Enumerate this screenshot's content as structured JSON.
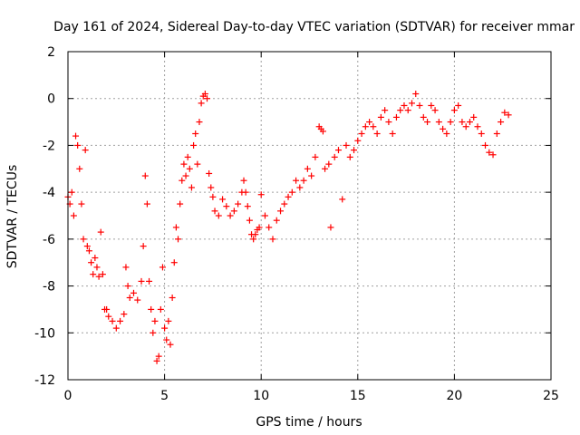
{
  "chart_data": {
    "type": "scatter",
    "title": "Day 161 of 2024, Sidereal Day-to-day VTEC variation (SDTVAR) for receiver mmar",
    "xlabel": "GPS time / hours",
    "ylabel": "SDTVAR / TECUs",
    "xlim": [
      0,
      25
    ],
    "ylim": [
      -12,
      2
    ],
    "xticks": [
      0,
      5,
      10,
      15,
      20,
      25
    ],
    "yticks": [
      -12,
      -10,
      -8,
      -6,
      -4,
      -2,
      0,
      2
    ],
    "grid": true,
    "marker": "+",
    "color": "#ff0000",
    "series": [
      {
        "name": "SDTVAR",
        "points": [
          [
            0.0,
            -4.2
          ],
          [
            0.1,
            -4.5
          ],
          [
            0.2,
            -4.0
          ],
          [
            0.3,
            -5.0
          ],
          [
            0.4,
            -1.6
          ],
          [
            0.5,
            -2.0
          ],
          [
            0.6,
            -3.0
          ],
          [
            0.7,
            -4.5
          ],
          [
            0.8,
            -6.0
          ],
          [
            0.9,
            -2.2
          ],
          [
            1.0,
            -6.3
          ],
          [
            1.1,
            -6.5
          ],
          [
            1.2,
            -7.0
          ],
          [
            1.3,
            -7.5
          ],
          [
            1.4,
            -6.8
          ],
          [
            1.5,
            -7.2
          ],
          [
            1.6,
            -7.6
          ],
          [
            1.7,
            -5.7
          ],
          [
            1.8,
            -7.5
          ],
          [
            1.9,
            -9.0
          ],
          [
            2.0,
            -9.0
          ],
          [
            2.1,
            -9.3
          ],
          [
            2.3,
            -9.5
          ],
          [
            2.5,
            -9.8
          ],
          [
            2.7,
            -9.5
          ],
          [
            2.9,
            -9.2
          ],
          [
            3.0,
            -7.2
          ],
          [
            3.1,
            -8.0
          ],
          [
            3.2,
            -8.5
          ],
          [
            3.4,
            -8.3
          ],
          [
            3.6,
            -8.6
          ],
          [
            3.8,
            -7.8
          ],
          [
            3.9,
            -6.3
          ],
          [
            4.0,
            -3.3
          ],
          [
            4.1,
            -4.5
          ],
          [
            4.2,
            -7.8
          ],
          [
            4.3,
            -9.0
          ],
          [
            4.4,
            -10.0
          ],
          [
            4.5,
            -9.5
          ],
          [
            4.6,
            -11.2
          ],
          [
            4.7,
            -11.0
          ],
          [
            4.8,
            -9.0
          ],
          [
            4.9,
            -7.2
          ],
          [
            5.0,
            -9.8
          ],
          [
            5.1,
            -10.3
          ],
          [
            5.2,
            -9.5
          ],
          [
            5.3,
            -10.5
          ],
          [
            5.4,
            -8.5
          ],
          [
            5.5,
            -7.0
          ],
          [
            5.6,
            -5.5
          ],
          [
            5.7,
            -6.0
          ],
          [
            5.8,
            -4.5
          ],
          [
            5.9,
            -3.5
          ],
          [
            6.0,
            -2.8
          ],
          [
            6.1,
            -3.3
          ],
          [
            6.2,
            -2.5
          ],
          [
            6.3,
            -3.0
          ],
          [
            6.4,
            -3.8
          ],
          [
            6.5,
            -2.0
          ],
          [
            6.6,
            -1.5
          ],
          [
            6.7,
            -2.8
          ],
          [
            6.8,
            -1.0
          ],
          [
            6.9,
            -0.2
          ],
          [
            7.0,
            0.1
          ],
          [
            7.1,
            0.2
          ],
          [
            7.2,
            0.0
          ],
          [
            7.3,
            -3.2
          ],
          [
            7.4,
            -3.8
          ],
          [
            7.5,
            -4.2
          ],
          [
            7.6,
            -4.8
          ],
          [
            7.8,
            -5.0
          ],
          [
            8.0,
            -4.3
          ],
          [
            8.2,
            -4.6
          ],
          [
            8.4,
            -5.0
          ],
          [
            8.6,
            -4.8
          ],
          [
            8.8,
            -4.5
          ],
          [
            9.0,
            -4.0
          ],
          [
            9.1,
            -3.5
          ],
          [
            9.2,
            -4.0
          ],
          [
            9.3,
            -4.6
          ],
          [
            9.4,
            -5.2
          ],
          [
            9.5,
            -5.8
          ],
          [
            9.6,
            -6.0
          ],
          [
            9.7,
            -5.8
          ],
          [
            9.8,
            -5.6
          ],
          [
            9.9,
            -5.5
          ],
          [
            10.0,
            -4.1
          ],
          [
            10.2,
            -5.0
          ],
          [
            10.4,
            -5.5
          ],
          [
            10.6,
            -6.0
          ],
          [
            10.8,
            -5.2
          ],
          [
            11.0,
            -4.8
          ],
          [
            11.2,
            -4.5
          ],
          [
            11.4,
            -4.2
          ],
          [
            11.6,
            -4.0
          ],
          [
            11.8,
            -3.5
          ],
          [
            12.0,
            -3.8
          ],
          [
            12.2,
            -3.5
          ],
          [
            12.4,
            -3.0
          ],
          [
            12.6,
            -3.3
          ],
          [
            12.8,
            -2.5
          ],
          [
            13.0,
            -1.2
          ],
          [
            13.1,
            -1.3
          ],
          [
            13.2,
            -1.4
          ],
          [
            13.3,
            -3.0
          ],
          [
            13.5,
            -2.8
          ],
          [
            13.6,
            -5.5
          ],
          [
            13.8,
            -2.5
          ],
          [
            14.0,
            -2.2
          ],
          [
            14.2,
            -4.3
          ],
          [
            14.4,
            -2.0
          ],
          [
            14.6,
            -2.5
          ],
          [
            14.8,
            -2.2
          ],
          [
            15.0,
            -1.8
          ],
          [
            15.2,
            -1.5
          ],
          [
            15.4,
            -1.2
          ],
          [
            15.6,
            -1.0
          ],
          [
            15.8,
            -1.2
          ],
          [
            16.0,
            -1.5
          ],
          [
            16.2,
            -0.8
          ],
          [
            16.4,
            -0.5
          ],
          [
            16.6,
            -1.0
          ],
          [
            16.8,
            -1.5
          ],
          [
            17.0,
            -0.8
          ],
          [
            17.2,
            -0.5
          ],
          [
            17.4,
            -0.3
          ],
          [
            17.6,
            -0.5
          ],
          [
            17.8,
            -0.2
          ],
          [
            18.0,
            0.2
          ],
          [
            18.2,
            -0.3
          ],
          [
            18.4,
            -0.8
          ],
          [
            18.6,
            -1.0
          ],
          [
            18.8,
            -0.3
          ],
          [
            19.0,
            -0.5
          ],
          [
            19.2,
            -1.0
          ],
          [
            19.4,
            -1.3
          ],
          [
            19.6,
            -1.5
          ],
          [
            19.8,
            -1.0
          ],
          [
            20.0,
            -0.5
          ],
          [
            20.2,
            -0.3
          ],
          [
            20.4,
            -1.0
          ],
          [
            20.6,
            -1.2
          ],
          [
            20.8,
            -1.0
          ],
          [
            21.0,
            -0.8
          ],
          [
            21.2,
            -1.2
          ],
          [
            21.4,
            -1.5
          ],
          [
            21.6,
            -2.0
          ],
          [
            21.8,
            -2.3
          ],
          [
            22.0,
            -2.4
          ],
          [
            22.2,
            -1.5
          ],
          [
            22.4,
            -1.0
          ],
          [
            22.6,
            -0.6
          ],
          [
            22.8,
            -0.7
          ]
        ]
      }
    ]
  }
}
